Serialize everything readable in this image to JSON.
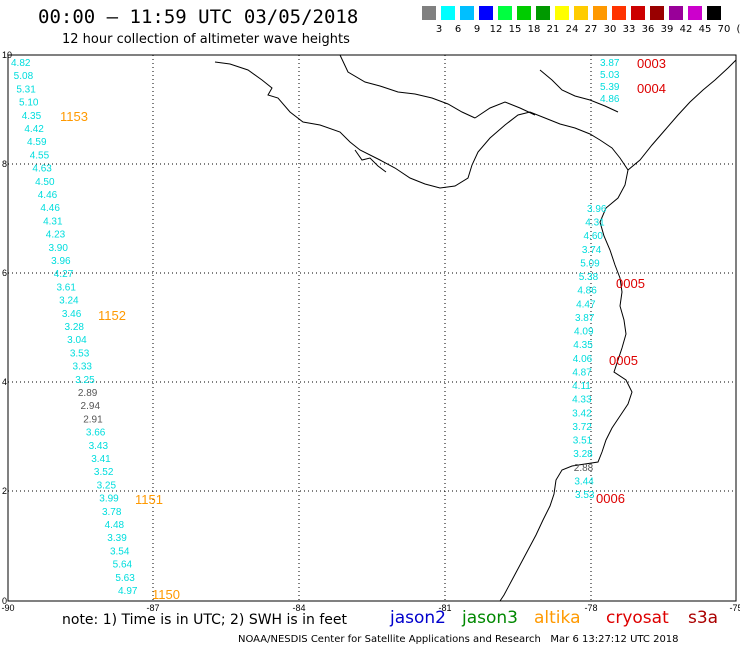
{
  "header": {
    "title": "00:00 – 11:59 UTC 03/05/2018",
    "subtitle": "12 hour collection of altimeter wave heights"
  },
  "legend": {
    "unit": "(ft)",
    "levels": [
      "3",
      "6",
      "9",
      "12",
      "15",
      "18",
      "21",
      "24",
      "27",
      "30",
      "33",
      "36",
      "39",
      "42",
      "45",
      "70"
    ],
    "colors": [
      "#808080",
      "#00ffff",
      "#00bfff",
      "#0000ff",
      "#00ff40",
      "#00cc00",
      "#009900",
      "#ffff00",
      "#ffcc00",
      "#ff9900",
      "#ff3300",
      "#cc0000",
      "#990000",
      "#990099",
      "#cc00cc",
      "#000000"
    ]
  },
  "axes": {
    "lon_labels": [
      "-90",
      "-87",
      "-84",
      "-81",
      "-78",
      "-75"
    ],
    "lat_labels": [
      "10",
      "8",
      "6",
      "4",
      "2",
      "0"
    ]
  },
  "tracks": [
    {
      "color": "#00dddd",
      "values": [
        "4.82",
        "5.08",
        "5.31",
        "5.10",
        "4.35",
        "4.42",
        "4.59",
        "4.55",
        "4.63",
        "4.50",
        "4.46",
        "4.46",
        "4.31",
        "4.23",
        "3.90",
        "3.96",
        "4.27",
        "3.61",
        "3.24",
        "3.46",
        "3.28",
        "3.04",
        "3.53",
        "3.33",
        "3.25",
        "2.89",
        "2.94",
        "2.91",
        "3.66",
        "3.43",
        "3.41",
        "3.52",
        "3.25",
        "3.99",
        "3.78",
        "4.48",
        "3.39",
        "3.54",
        "5.64",
        "5.63",
        "4.97"
      ],
      "gray_indices": [
        25,
        26,
        27
      ]
    },
    {
      "color": "#00dddd",
      "values": [
        "3.87",
        "5.03",
        "5.39",
        "4.86"
      ]
    },
    {
      "color": "#00dddd",
      "values": [
        "3.96",
        "4.31",
        "4.60",
        "3.74",
        "5.09",
        "5.38",
        "4.86",
        "4.47",
        "3.87",
        "4.09",
        "4.35",
        "4.06",
        "4.87",
        "4.11",
        "4.33",
        "3.42",
        "3.72",
        "3.51",
        "3.28",
        "2.88",
        "3.44",
        "3.53"
      ],
      "gray_indices": [
        19
      ]
    }
  ],
  "time_labels": [
    {
      "text": "1153",
      "color": "#ff9900"
    },
    {
      "text": "1152",
      "color": "#ff9900"
    },
    {
      "text": "1151",
      "color": "#ff9900"
    },
    {
      "text": "1150",
      "color": "#ff9900"
    },
    {
      "text": "0003",
      "color": "#dd0000"
    },
    {
      "text": "0004",
      "color": "#dd0000"
    },
    {
      "text": "0005",
      "color": "#dd0000"
    },
    {
      "text": "0005",
      "color": "#dd0000"
    },
    {
      "text": "0006",
      "color": "#dd0000"
    }
  ],
  "note": "note:  1) Time is in UTC;  2) SWH is in feet",
  "satellites": [
    {
      "name": "jason2",
      "color": "#0000cc"
    },
    {
      "name": "jason3",
      "color": "#008800"
    },
    {
      "name": "altika",
      "color": "#ff9900"
    },
    {
      "name": "cryosat",
      "color": "#dd0000"
    },
    {
      "name": "s3a",
      "color": "#aa0000"
    }
  ],
  "footer": {
    "source": "NOAA/NESDIS Center for Satellite Applications and Research",
    "timestamp": "Mar  6 13:27:12 UTC 2018"
  }
}
